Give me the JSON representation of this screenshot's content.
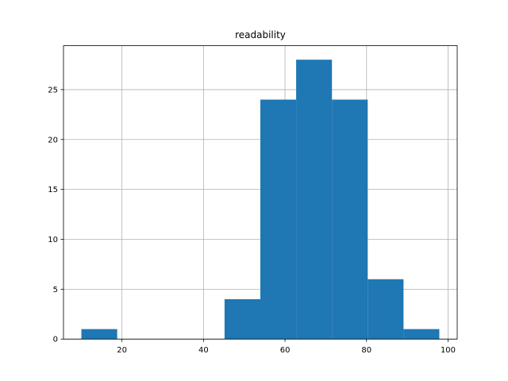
{
  "chart_data": {
    "type": "histogram",
    "title": "readability",
    "bins": [
      10.05,
      18.83,
      27.61,
      36.39,
      45.17,
      53.95,
      62.73,
      71.51,
      80.29,
      89.07,
      97.85
    ],
    "values": [
      1,
      0,
      0,
      0,
      4,
      24,
      28,
      24,
      6,
      1
    ],
    "color": "#1f77b4",
    "xlim": [
      5.66,
      102.24
    ],
    "xticks": [
      20,
      40,
      60,
      80,
      100
    ],
    "ylim": [
      0,
      29.4
    ],
    "yticks": [
      0,
      5,
      10,
      15,
      20,
      25
    ],
    "grid": true
  }
}
